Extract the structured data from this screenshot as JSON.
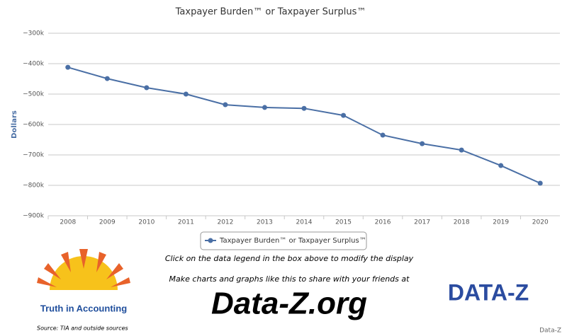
{
  "chart_data": {
    "type": "line",
    "title": "Taxpayer Burden™ or Taxpayer Surplus™",
    "y_label": "Dollars",
    "categories": [
      "2008",
      "2009",
      "2010",
      "2011",
      "2012",
      "2013",
      "2014",
      "2015",
      "2016",
      "2017",
      "2018",
      "2019",
      "2020"
    ],
    "series": [
      {
        "name": "Taxpayer Burden™ or Taxpayer Surplus™",
        "color": "#4a6fa5",
        "values": [
          -412000,
          -449000,
          -479000,
          -500000,
          -535000,
          -544000,
          -547000,
          -570000,
          -635000,
          -663000,
          -684000,
          -735000,
          -793000
        ]
      }
    ],
    "ylim": [
      -900000,
      -300000
    ],
    "yticks": [
      {
        "value": -900000,
        "label": "−900k"
      },
      {
        "value": -800000,
        "label": "−800k"
      },
      {
        "value": -700000,
        "label": "−700k"
      },
      {
        "value": -600000,
        "label": "−600k"
      },
      {
        "value": -500000,
        "label": "−500k"
      },
      {
        "value": -400000,
        "label": "−400k"
      },
      {
        "value": -300000,
        "label": "−300k"
      }
    ],
    "grid": true
  },
  "footer": {
    "hint": "Click on the data legend in the box above to modify the display",
    "promo": "Make charts and graphs like this to share with your friends at",
    "site": "Data-Z.org",
    "tia_logo": "Truth in Accounting",
    "dataz_logo": "DATA-Z",
    "source": "Source: TIA and outside sources",
    "credit": "Data-Z"
  }
}
